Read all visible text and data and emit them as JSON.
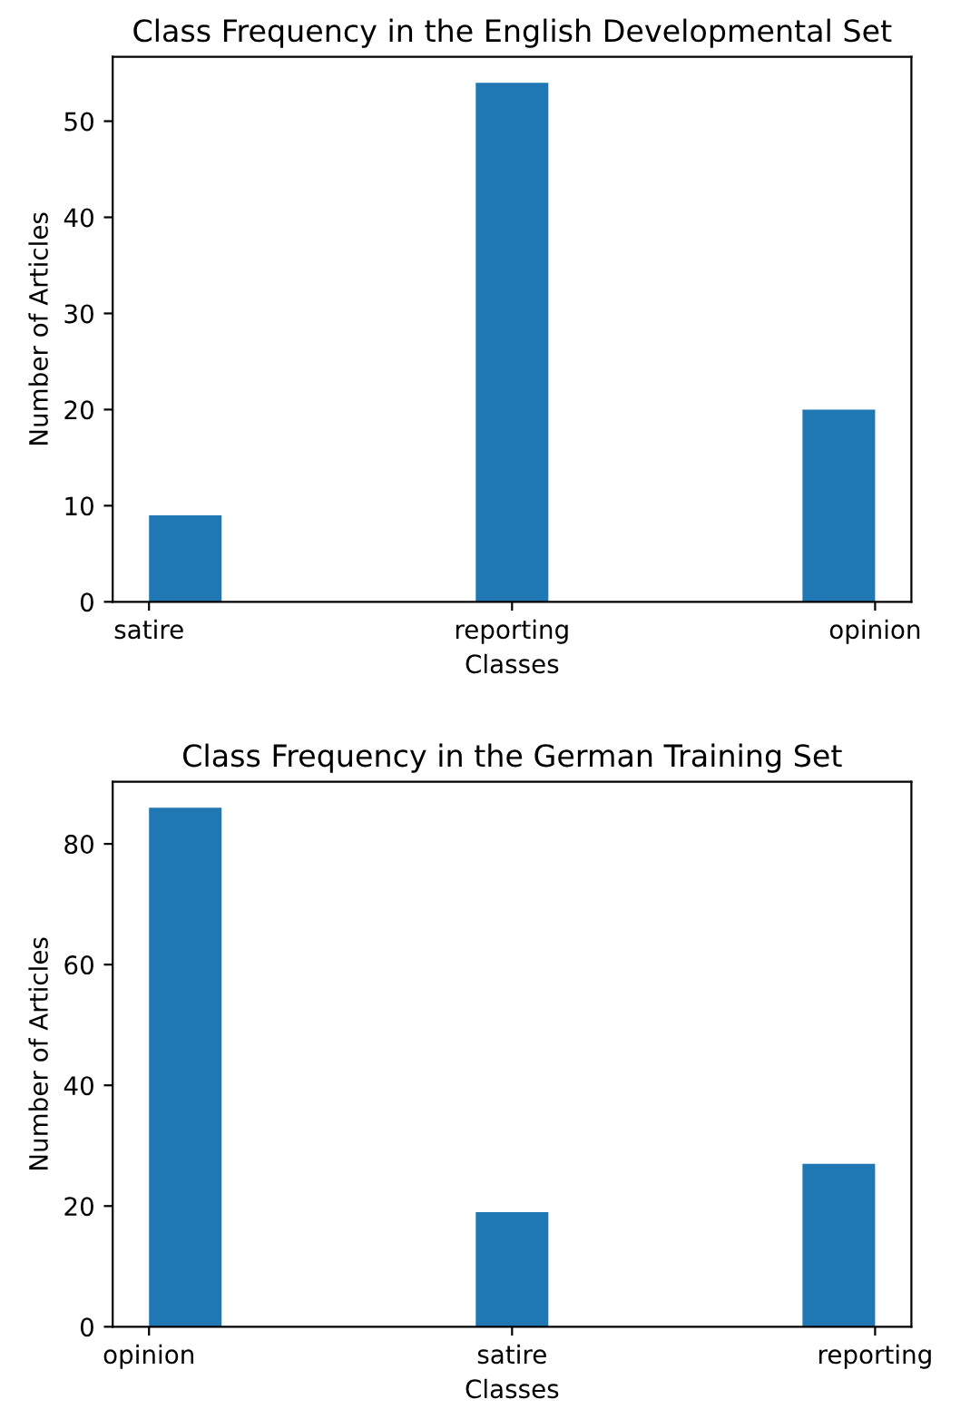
{
  "chart_data": [
    {
      "type": "bar",
      "title": "Class Frequency in the English Developmental Set",
      "xlabel": "Classes",
      "ylabel": "Number of Articles",
      "categories": [
        "satire",
        "reporting",
        "opinion"
      ],
      "values": [
        9,
        54,
        20
      ],
      "color": "#1f77b4",
      "ylim": [
        0,
        56.7
      ],
      "yticks": [
        0,
        10,
        20,
        30,
        40,
        50
      ],
      "grid": false
    },
    {
      "type": "bar",
      "title": "Class Frequency in the German Training Set",
      "xlabel": "Classes",
      "ylabel": "Number of Articles",
      "categories": [
        "opinion",
        "satire",
        "reporting"
      ],
      "values": [
        86,
        19,
        27
      ],
      "color": "#1f77b4",
      "ylim": [
        0,
        90.3
      ],
      "yticks": [
        0,
        20,
        40,
        60,
        80
      ],
      "grid": false
    }
  ]
}
